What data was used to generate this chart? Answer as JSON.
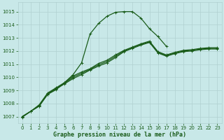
{
  "title": "Graphe pression niveau de la mer (hPa)",
  "background_color": "#c8e8e8",
  "grid_color": "#b0d0d0",
  "line_color": "#1a5c1a",
  "xlim": [
    -0.5,
    23.5
  ],
  "ylim": [
    1006.5,
    1015.7
  ],
  "yticks": [
    1007,
    1008,
    1009,
    1010,
    1011,
    1012,
    1013,
    1014,
    1015
  ],
  "xticks": [
    0,
    1,
    2,
    3,
    4,
    5,
    6,
    7,
    8,
    9,
    10,
    11,
    12,
    13,
    14,
    15,
    16,
    17,
    18,
    19,
    20,
    21,
    22,
    23
  ],
  "series": [
    {
      "x": [
        0,
        1,
        2,
        3,
        4,
        5,
        6,
        7,
        8,
        9,
        10,
        11,
        12,
        13,
        14,
        15,
        16,
        17,
        18,
        19,
        20,
        21,
        22,
        23
      ],
      "y": [
        1007.0,
        1007.4,
        1007.8,
        1008.7,
        1009.1,
        1009.5,
        1009.9,
        1010.2,
        1010.55,
        1010.85,
        1011.1,
        1011.5,
        1011.95,
        1012.2,
        1012.45,
        1012.65,
        1011.85,
        1011.6,
        1011.8,
        1011.95,
        1012.0,
        1012.1,
        1012.15,
        1012.15
      ],
      "marker": true
    },
    {
      "x": [
        0,
        1,
        2,
        3,
        4,
        5,
        6,
        7,
        8,
        9,
        10,
        11,
        12,
        13,
        14,
        15,
        16,
        17,
        18,
        19,
        20,
        21,
        22,
        23
      ],
      "y": [
        1007.0,
        1007.4,
        1007.85,
        1008.75,
        1009.15,
        1009.55,
        1010.0,
        1010.3,
        1010.6,
        1010.95,
        1011.2,
        1011.6,
        1012.0,
        1012.25,
        1012.5,
        1012.7,
        1011.9,
        1011.65,
        1011.85,
        1012.0,
        1012.05,
        1012.15,
        1012.2,
        1012.2
      ],
      "marker": true
    },
    {
      "x": [
        0,
        1,
        2,
        3,
        4,
        5,
        6,
        7,
        8,
        9,
        10,
        11,
        12,
        13,
        14,
        15,
        16,
        17,
        18,
        19,
        20,
        21,
        22,
        23
      ],
      "y": [
        1007.0,
        1007.4,
        1007.9,
        1008.8,
        1009.2,
        1009.6,
        1010.1,
        1010.4,
        1010.65,
        1011.05,
        1011.3,
        1011.7,
        1012.05,
        1012.3,
        1012.55,
        1012.75,
        1011.95,
        1011.7,
        1011.9,
        1012.05,
        1012.1,
        1012.2,
        1012.25,
        1012.25
      ],
      "marker": true
    },
    {
      "x": [
        0,
        1,
        2,
        3,
        4,
        5,
        6,
        7,
        8,
        9,
        10,
        11,
        12,
        13,
        14,
        15,
        16,
        17
      ],
      "y": [
        1006.95,
        1007.4,
        1007.8,
        1008.7,
        1009.05,
        1009.6,
        1010.2,
        1011.1,
        1013.3,
        1014.1,
        1014.65,
        1014.95,
        1015.0,
        1015.0,
        1014.5,
        1013.7,
        1013.1,
        1012.35
      ],
      "marker": true
    }
  ],
  "marker_symbol": "+",
  "markersize": 3.5,
  "linewidth": 0.9,
  "tick_fontsize": 5.0,
  "xlabel_fontsize": 6.0
}
